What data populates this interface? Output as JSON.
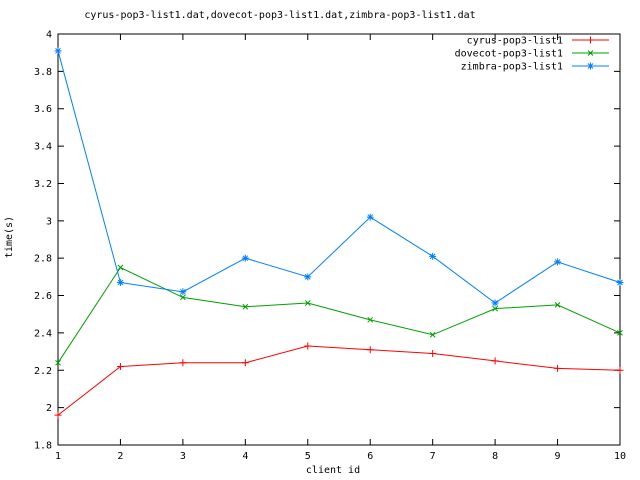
{
  "chart_data": {
    "type": "line",
    "title": "cyrus-pop3-list1.dat,dovecot-pop3-list1.dat,zimbra-pop3-list1.dat",
    "xlabel": "client id",
    "ylabel": "time(s)",
    "x": [
      1,
      2,
      3,
      4,
      5,
      6,
      7,
      8,
      9,
      10
    ],
    "xlim": [
      1,
      10
    ],
    "ylim": [
      1.8,
      4
    ],
    "xtick_labels": [
      "1",
      "2",
      "3",
      "4",
      "5",
      "6",
      "7",
      "8",
      "9",
      "10"
    ],
    "ytick_values": [
      1.8,
      2.0,
      2.2,
      2.4,
      2.6,
      2.8,
      3.0,
      3.2,
      3.4,
      3.6,
      3.8,
      4.0
    ],
    "ytick_labels": [
      "1.8",
      "2",
      "2.2",
      "2.4",
      "2.6",
      "2.8",
      "3",
      "3.2",
      "3.4",
      "3.6",
      "3.8",
      "4"
    ],
    "grid": false,
    "legend_position": "top-right-inside",
    "background_color": "#ffffff",
    "border_color": "#000000",
    "series": [
      {
        "name": "cyrus-pop3-list1",
        "color": "#ff0000",
        "marker": "plus",
        "values": [
          1.96,
          2.22,
          2.24,
          2.24,
          2.33,
          2.31,
          2.29,
          2.25,
          2.21,
          2.2
        ]
      },
      {
        "name": "dovecot-pop3-list1",
        "color": "#00a000",
        "marker": "cross",
        "values": [
          2.24,
          2.75,
          2.59,
          2.54,
          2.56,
          2.47,
          2.39,
          2.53,
          2.55,
          2.4
        ]
      },
      {
        "name": "zimbra-pop3-list1",
        "color": "#0080ff",
        "marker": "asterisk",
        "values": [
          3.91,
          2.67,
          2.62,
          2.8,
          2.7,
          3.02,
          2.81,
          2.56,
          2.78,
          2.67
        ]
      }
    ]
  }
}
